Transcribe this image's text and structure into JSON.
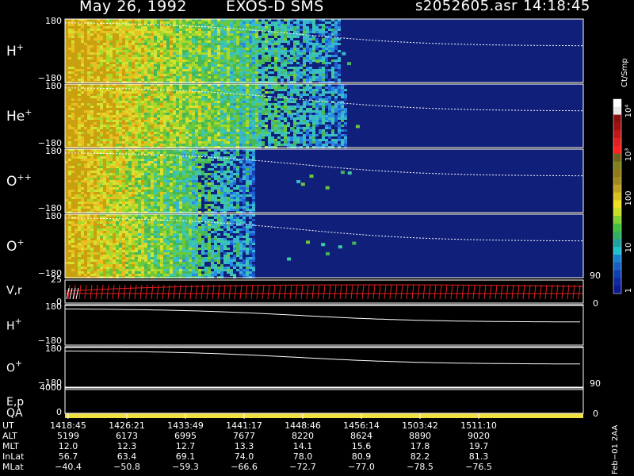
{
  "header": {
    "date": "May 26, 1992",
    "instrument": "EXOS-D SMS",
    "file": "s2052605.asr",
    "time": "14:18:45"
  },
  "chart_data": {
    "type": "heatmap",
    "panels": [
      {
        "label": "H",
        "sup": "+",
        "kind": "spectrogram",
        "ylim_labels": [
          "180",
          "−180"
        ]
      },
      {
        "label": "He",
        "sup": "+",
        "kind": "spectrogram",
        "ylim_labels": [
          "180",
          "−180"
        ]
      },
      {
        "label": "O",
        "sup": "++",
        "kind": "spectrogram",
        "ylim_labels": [
          "180",
          "−180"
        ]
      },
      {
        "label": "O",
        "sup": "+",
        "kind": "spectrogram",
        "ylim_labels": [
          "180",
          "−180"
        ]
      },
      {
        "label": "V,r",
        "sup": "",
        "kind": "line",
        "left_ticks": [
          "25",
          "0"
        ],
        "right_ticks": [
          "90",
          "0"
        ]
      },
      {
        "label": "H",
        "sup": "+",
        "kind": "line",
        "ylim_labels": [
          "180",
          "−180"
        ]
      },
      {
        "label": "O",
        "sup": "+",
        "kind": "line",
        "ylim_labels": [
          "180",
          "−180"
        ]
      },
      {
        "label": "E,p",
        "sup": "",
        "label2": "QA",
        "kind": "line",
        "left_ticks": [
          "4000",
          "0"
        ],
        "right_ticks": [
          "90",
          "0"
        ]
      }
    ],
    "colorbar": {
      "label": "Ct/Smp",
      "ticks": [
        "1",
        "10",
        "100",
        "10³",
        "10⁴"
      ]
    },
    "time_axis": {
      "rows": [
        {
          "name": "UT",
          "values": [
            "1418:45",
            "1426:21",
            "1433:49",
            "1441:17",
            "1448:46",
            "1456:14",
            "1503:42",
            "1511:10"
          ]
        },
        {
          "name": "ALT",
          "values": [
            "5199",
            "6173",
            "6995",
            "7677",
            "8220",
            "8624",
            "8890",
            "9020"
          ]
        },
        {
          "name": "MLT",
          "values": [
            "12.0",
            "12.3",
            "12.7",
            "13.3",
            "14.1",
            "15.6",
            "17.8",
            "19.7"
          ]
        },
        {
          "name": "InLat",
          "values": [
            "56.7",
            "63.4",
            "69.1",
            "74.0",
            "78.0",
            "80.9",
            "82.2",
            "81.3"
          ]
        },
        {
          "name": "MLat",
          "values": [
            "−40.4",
            "−50.8",
            "−59.3",
            "−66.6",
            "−72.7",
            "−77.0",
            "−78.5",
            "−76.5"
          ]
        }
      ]
    }
  },
  "side_note": "Feb−01 2AA"
}
